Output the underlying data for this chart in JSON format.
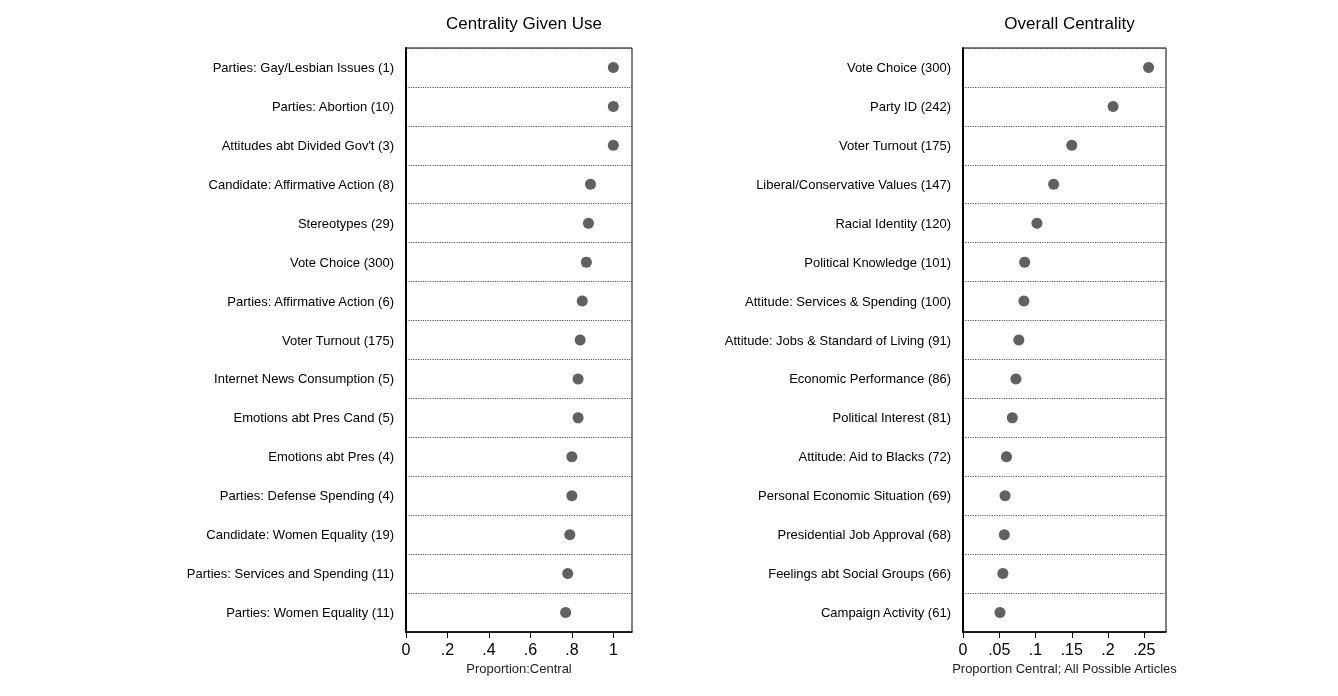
{
  "chart_data": [
    {
      "type": "scatter",
      "title": "Centrality Given Use",
      "xlabel": "Proportion:Central",
      "orientation": "horizontal",
      "categories": [
        "Parties: Gay/Lesbian Issues (1)",
        "Parties: Abortion (10)",
        "Attitudes abt Divided Gov't (3)",
        "Candidate: Affirmative Action (8)",
        "Stereotypes (29)",
        "Vote Choice (300)",
        "Parties: Affirmative Action (6)",
        "Voter Turnout (175)",
        "Internet News Consumption (5)",
        "Emotions abt Pres Cand (5)",
        "Emotions abt Pres (4)",
        "Parties: Defense Spending (4)",
        "Candidate: Women Equality (19)",
        "Parties: Services and Spending (11)",
        "Parties: Women Equality (11)"
      ],
      "series": [
        {
          "color": "#3a3a3a",
          "values": [
            1.0,
            1.0,
            1.0,
            0.89,
            0.88,
            0.87,
            0.85,
            0.84,
            0.83,
            0.83,
            0.8,
            0.8,
            0.79,
            0.78,
            0.77
          ]
        }
      ],
      "xlim": [
        0,
        1.09
      ],
      "xticks": [
        {
          "value": 0,
          "label": "0"
        },
        {
          "value": 0.2,
          "label": ".2"
        },
        {
          "value": 0.4,
          "label": ".4"
        },
        {
          "value": 0.6,
          "label": ".6"
        },
        {
          "value": 0.8,
          "label": ".8"
        },
        {
          "value": 1,
          "label": "1"
        }
      ],
      "grid": "y",
      "marker": "circle"
    },
    {
      "type": "scatter",
      "title": "Overall Centrality",
      "xlabel": "Proportion Central; All Possible Articles",
      "orientation": "horizontal",
      "categories": [
        "Vote Choice (300)",
        "Party ID (242)",
        "Voter Turnout (175)",
        "Liberal/Conservative Values (147)",
        "Racial Identity (120)",
        "Political Knowledge (101)",
        "Attitude: Services & Spending (100)",
        "Attitude: Jobs & Standard of Living (91)",
        "Economic Performance (86)",
        "Political Interest (81)",
        "Attitude: Aid to Blacks (72)",
        "Personal Economic Situation (69)",
        "Presidential Job Approval (68)",
        "Feelings abt Social Groups (66)",
        "Campaign Activity (61)"
      ],
      "series": [
        {
          "color": "#3a3a3a",
          "values": [
            0.256,
            0.207,
            0.15,
            0.125,
            0.102,
            0.085,
            0.084,
            0.077,
            0.073,
            0.068,
            0.06,
            0.058,
            0.057,
            0.055,
            0.051
          ]
        }
      ],
      "xlim": [
        0,
        0.28
      ],
      "xticks": [
        {
          "value": 0,
          "label": "0"
        },
        {
          "value": 0.05,
          "label": ".05"
        },
        {
          "value": 0.1,
          "label": ".1"
        },
        {
          "value": 0.15,
          "label": ".15"
        },
        {
          "value": 0.2,
          "label": ".2"
        },
        {
          "value": 0.25,
          "label": ".25"
        }
      ],
      "grid": "y",
      "marker": "circle"
    }
  ]
}
